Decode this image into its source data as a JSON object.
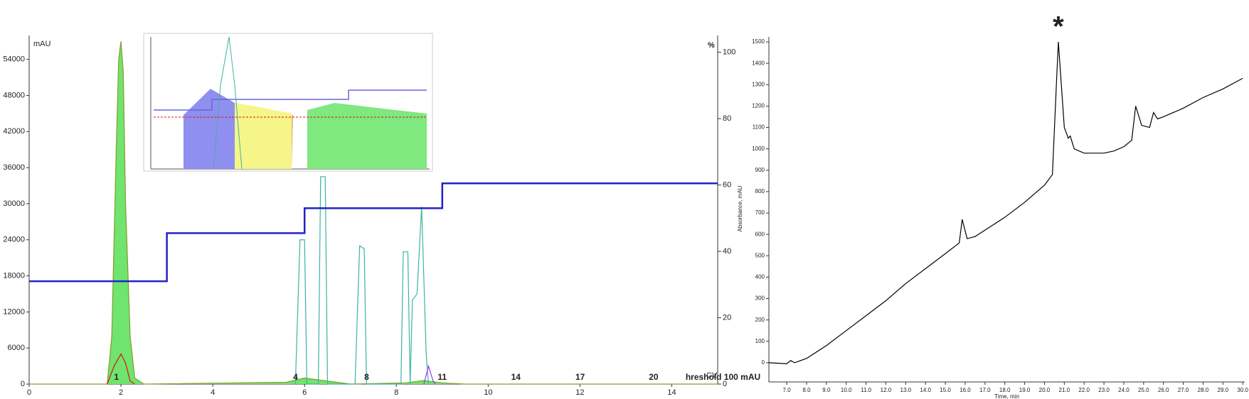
{
  "chart_data": [
    {
      "type": "line",
      "ylabel": "mAU",
      "y2label": "%",
      "xlabel": "CV",
      "xlim": [
        0,
        15
      ],
      "xticks": [
        0,
        2,
        4,
        6,
        8,
        10,
        12,
        14
      ],
      "ylim": [
        0,
        57500
      ],
      "yticks": [
        0,
        6000,
        12000,
        18000,
        24000,
        30000,
        36000,
        42000,
        48000,
        54000
      ],
      "y2lim": [
        0,
        104.2
      ],
      "y2ticks": [
        0,
        20,
        40,
        60,
        80,
        100
      ],
      "grid": false,
      "series": [
        {
          "color": "#8a9a2a",
          "fill": "#6fe46f",
          "x": [
            0,
            1.7,
            1.8,
            1.9,
            1.95,
            2.0,
            2.05,
            2.1,
            2.2,
            2.3,
            2.5,
            5.6,
            6.0,
            6.5,
            7.0,
            8.2,
            8.6,
            9.0,
            9.5,
            15
          ],
          "values": [
            0,
            0,
            8000,
            40000,
            54000,
            57000,
            52000,
            30000,
            8000,
            1000,
            0,
            300,
            1000,
            500,
            0,
            200,
            600,
            200,
            0,
            0
          ]
        },
        {
          "color": "#dd1111",
          "x": [
            1.7,
            1.85,
            2.0,
            2.1,
            2.2,
            2.3
          ],
          "values": [
            0,
            3000,
            5000,
            3500,
            500,
            0
          ]
        },
        {
          "color": "#3cb4a0",
          "x": [
            5.8,
            5.9,
            6.0,
            6.05,
            6.3,
            6.35,
            6.45,
            6.5,
            7.1,
            7.2,
            7.3,
            7.35,
            8.1,
            8.15,
            8.25,
            8.3,
            8.35,
            8.45,
            8.55,
            8.65,
            8.7
          ],
          "values": [
            0,
            24000,
            24000,
            0,
            0,
            34500,
            34500,
            0,
            0,
            23000,
            22500,
            0,
            0,
            22000,
            22000,
            0,
            14000,
            15000,
            29500,
            5000,
            0
          ]
        },
        {
          "color": "#9933ff",
          "x": [
            8.6,
            8.7,
            8.8,
            8.85
          ],
          "values": [
            0,
            3000,
            500,
            0
          ]
        },
        {
          "color": "#2222cc",
          "axis": "y2",
          "x": [
            0,
            3,
            3,
            6,
            6,
            9,
            9,
            15
          ],
          "values": [
            31,
            31,
            45.5,
            45.5,
            53,
            53,
            60.5,
            60.5
          ]
        }
      ],
      "annotations": [
        {
          "x": 1.85,
          "text": "1"
        },
        {
          "x": 5.75,
          "text": "4"
        },
        {
          "x": 7.3,
          "text": "8"
        },
        {
          "x": 8.9,
          "text": "11"
        },
        {
          "x": 10.5,
          "text": "14"
        },
        {
          "x": 11.9,
          "text": "17"
        },
        {
          "x": 13.5,
          "text": "20"
        },
        {
          "x": 14.3,
          "text": "hreshold 100 mAU",
          "color": "#2222cc"
        }
      ]
    },
    {
      "type": "line",
      "ylabel": "Absorbance, mAU",
      "xlabel": "Time, min",
      "xlim": [
        6.1,
        30.1
      ],
      "xticks": [
        {
          "value": 7,
          "label": "7.0"
        },
        {
          "value": 8,
          "label": "8.0"
        },
        {
          "value": 9,
          "label": "9.0"
        },
        {
          "value": 10,
          "label": "10.0"
        },
        {
          "value": 11,
          "label": "11.0"
        },
        {
          "value": 12,
          "label": "12.0"
        },
        {
          "value": 13,
          "label": "13.0"
        },
        {
          "value": 14,
          "label": "14.0"
        },
        {
          "value": 15,
          "label": "15.0"
        },
        {
          "value": 16,
          "label": "16.0"
        },
        {
          "value": 17,
          "label": "17.0"
        },
        {
          "value": 18,
          "label": "18.0"
        },
        {
          "value": 19,
          "label": "19.0"
        },
        {
          "value": 20,
          "label": "20.0"
        },
        {
          "value": 21,
          "label": "21.0"
        },
        {
          "value": 22,
          "label": "22.0"
        },
        {
          "value": 23,
          "label": "23.0"
        },
        {
          "value": 24,
          "label": "24.0"
        },
        {
          "value": 25,
          "label": "25.0"
        },
        {
          "value": 26,
          "label": "26.0"
        },
        {
          "value": 27,
          "label": "27.0"
        },
        {
          "value": 28,
          "label": "28.0"
        },
        {
          "value": 29,
          "label": "29.0"
        },
        {
          "value": 30,
          "label": "30.0"
        }
      ],
      "ylim": [
        -90,
        1530
      ],
      "yticks": [
        0,
        100,
        200,
        300,
        400,
        500,
        600,
        700,
        800,
        900,
        1000,
        1100,
        1200,
        1300,
        1400,
        1500
      ],
      "grid": false,
      "series": [
        {
          "color": "#000000",
          "x": [
            6.1,
            7.0,
            7.2,
            7.4,
            8.0,
            9,
            10,
            11,
            12,
            13,
            14,
            15,
            15.7,
            15.85,
            16.1,
            16.5,
            17,
            18,
            19,
            20,
            20.4,
            20.6,
            20.7,
            20.85,
            21,
            21.2,
            21.3,
            21.5,
            22,
            23,
            23.5,
            24,
            24.4,
            24.6,
            24.9,
            25.3,
            25.5,
            25.7,
            26,
            27,
            28,
            29,
            30
          ],
          "values": [
            0,
            -5,
            10,
            0,
            20,
            80,
            150,
            220,
            290,
            370,
            440,
            510,
            560,
            670,
            580,
            590,
            620,
            680,
            750,
            830,
            880,
            1300,
            1500,
            1300,
            1100,
            1050,
            1060,
            1000,
            980,
            980,
            990,
            1010,
            1040,
            1200,
            1110,
            1100,
            1170,
            1140,
            1150,
            1190,
            1240,
            1280,
            1330
          ]
        }
      ],
      "annotations": [
        {
          "x": 20.7,
          "text": "*"
        }
      ]
    }
  ]
}
